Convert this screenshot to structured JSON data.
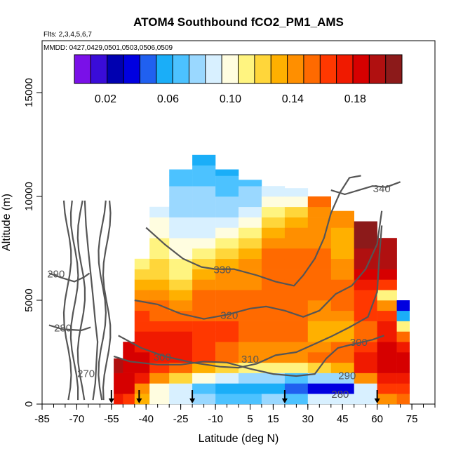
{
  "chart_data": {
    "type": "heatmap",
    "title": "ATOM4 Southbound fCO2_PM1_AMS",
    "subtitle_flts": "Flts: 2,3,4,5,6,7",
    "subtitle_dates": "MMDD: 0427,0429,0501,0503,0506,0509",
    "xlabel": "Latitude (deg N)",
    "ylabel": "Altitude (m)",
    "xlim": [
      -85,
      85
    ],
    "ylim": [
      0,
      17500
    ],
    "xticks": [
      -85,
      -70,
      -55,
      -40,
      -25,
      -10,
      5,
      15,
      30,
      45,
      60,
      75
    ],
    "yticks": [
      0,
      5000,
      10000,
      15000
    ],
    "colorbar": {
      "range": [
        0.0,
        0.21
      ],
      "ticks": [
        "0.02",
        "0.06",
        "0.10",
        "0.14",
        "0.18"
      ],
      "tick_values": [
        0.02,
        0.06,
        0.1,
        0.14,
        0.18
      ],
      "colors": [
        "#7a10e8",
        "#3a0cd8",
        "#0000b0",
        "#0000e0",
        "#2060f0",
        "#1aaef8",
        "#4cc2ff",
        "#9ad8ff",
        "#d8f0ff",
        "#fffde0",
        "#fff480",
        "#ffd63a",
        "#ffb000",
        "#ff8f00",
        "#ff6a00",
        "#ff3800",
        "#f01a00",
        "#d60000",
        "#b01010",
        "#8c1a1a"
      ]
    },
    "profiles": [
      {
        "lat": 72,
        "ztop": 5000,
        "vals": [
          [
            0,
            0.14
          ],
          [
            600,
            0.16
          ],
          [
            1500,
            0.18
          ],
          [
            2400,
            0.19
          ],
          [
            3300,
            0.15
          ],
          [
            3900,
            0.09
          ],
          [
            4500,
            0.04
          ],
          [
            5000,
            0.03
          ]
        ]
      },
      {
        "lat": 65,
        "ztop": 8000,
        "vals": [
          [
            0,
            0.14
          ],
          [
            800,
            0.16
          ],
          [
            1800,
            0.19
          ],
          [
            2800,
            0.18
          ],
          [
            4200,
            0.17
          ],
          [
            5200,
            0.11
          ],
          [
            6000,
            0.18
          ],
          [
            7000,
            0.2
          ],
          [
            8000,
            0.19
          ]
        ]
      },
      {
        "lat": 55,
        "ztop": 8800,
        "vals": [
          [
            0,
            0.12
          ],
          [
            500,
            0.05
          ],
          [
            1000,
            0.12
          ],
          [
            1800,
            0.18
          ],
          [
            2600,
            0.16
          ],
          [
            3400,
            0.15
          ],
          [
            4500,
            0.16
          ],
          [
            5500,
            0.17
          ],
          [
            6500,
            0.19
          ],
          [
            7500,
            0.2
          ],
          [
            8800,
            0.2
          ]
        ]
      },
      {
        "lat": 45,
        "ztop": 9300,
        "vals": [
          [
            0,
            0.13
          ],
          [
            400,
            0.06
          ],
          [
            900,
            0.02
          ],
          [
            1500,
            0.12
          ],
          [
            2400,
            0.16
          ],
          [
            3400,
            0.13
          ],
          [
            4500,
            0.15
          ],
          [
            6000,
            0.15
          ],
          [
            7500,
            0.13
          ],
          [
            9300,
            0.14
          ]
        ]
      },
      {
        "lat": 35,
        "ztop": 10000,
        "vals": [
          [
            0,
            0.12
          ],
          [
            500,
            0.05
          ],
          [
            900,
            0.03
          ],
          [
            1500,
            0.11
          ],
          [
            2300,
            0.15
          ],
          [
            3500,
            0.13
          ],
          [
            5000,
            0.15
          ],
          [
            7000,
            0.15
          ],
          [
            8500,
            0.14
          ],
          [
            10000,
            0.15
          ]
        ]
      },
      {
        "lat": 25,
        "ztop": 10400,
        "vals": [
          [
            0,
            0.09
          ],
          [
            500,
            0.05
          ],
          [
            900,
            0.04
          ],
          [
            1500,
            0.09
          ],
          [
            2300,
            0.14
          ],
          [
            3500,
            0.15
          ],
          [
            5000,
            0.15
          ],
          [
            7000,
            0.15
          ],
          [
            8500,
            0.14
          ],
          [
            9500,
            0.11
          ],
          [
            10400,
            0.09
          ]
        ]
      },
      {
        "lat": 15,
        "ztop": 10500,
        "vals": [
          [
            0,
            0.09
          ],
          [
            500,
            0.06
          ],
          [
            900,
            0.05
          ],
          [
            1500,
            0.1
          ],
          [
            2300,
            0.14
          ],
          [
            3500,
            0.15
          ],
          [
            5000,
            0.15
          ],
          [
            7000,
            0.15
          ],
          [
            8000,
            0.14
          ],
          [
            9000,
            0.11
          ],
          [
            10500,
            0.08
          ]
        ]
      },
      {
        "lat": 5,
        "ztop": 10800,
        "vals": [
          [
            0,
            0.08
          ],
          [
            500,
            0.06
          ],
          [
            900,
            0.05
          ],
          [
            1500,
            0.1
          ],
          [
            2300,
            0.14
          ],
          [
            3500,
            0.15
          ],
          [
            5000,
            0.15
          ],
          [
            7000,
            0.14
          ],
          [
            8000,
            0.12
          ],
          [
            9000,
            0.09
          ],
          [
            10800,
            0.07
          ]
        ]
      },
      {
        "lat": -5,
        "ztop": 11300,
        "vals": [
          [
            0,
            0.08
          ],
          [
            500,
            0.06
          ],
          [
            900,
            0.06
          ],
          [
            1500,
            0.11
          ],
          [
            2300,
            0.15
          ],
          [
            3500,
            0.16
          ],
          [
            5000,
            0.15
          ],
          [
            6500,
            0.14
          ],
          [
            7500,
            0.12
          ],
          [
            8500,
            0.09
          ],
          [
            9500,
            0.08
          ],
          [
            11300,
            0.06
          ]
        ]
      },
      {
        "lat": -15,
        "ztop": 12000,
        "vals": [
          [
            0,
            0.08
          ],
          [
            500,
            0.07
          ],
          [
            900,
            0.07
          ],
          [
            1500,
            0.12
          ],
          [
            2300,
            0.16
          ],
          [
            3500,
            0.16
          ],
          [
            5000,
            0.15
          ],
          [
            6000,
            0.14
          ],
          [
            7000,
            0.11
          ],
          [
            8000,
            0.09
          ],
          [
            9500,
            0.08
          ],
          [
            11000,
            0.07
          ],
          [
            12000,
            0.06
          ]
        ]
      },
      {
        "lat": -25,
        "ztop": 11300,
        "vals": [
          [
            0,
            0.09
          ],
          [
            500,
            0.08
          ],
          [
            900,
            0.09
          ],
          [
            1500,
            0.14
          ],
          [
            2300,
            0.17
          ],
          [
            3500,
            0.17
          ],
          [
            4500,
            0.15
          ],
          [
            5500,
            0.12
          ],
          [
            6500,
            0.11
          ],
          [
            7500,
            0.1
          ],
          [
            8500,
            0.09
          ],
          [
            9500,
            0.08
          ],
          [
            11300,
            0.07
          ]
        ]
      },
      {
        "lat": -35,
        "ztop": 9500,
        "vals": [
          [
            0,
            0.1
          ],
          [
            500,
            0.09
          ],
          [
            900,
            0.11
          ],
          [
            1500,
            0.16
          ],
          [
            2300,
            0.17
          ],
          [
            3500,
            0.17
          ],
          [
            4500,
            0.15
          ],
          [
            5500,
            0.14
          ],
          [
            6500,
            0.12
          ],
          [
            7500,
            0.11
          ],
          [
            8500,
            0.1
          ],
          [
            9500,
            0.09
          ]
        ]
      },
      {
        "lat": -42,
        "ztop": 7000,
        "vals": [
          [
            0,
            0.12
          ],
          [
            600,
            0.14
          ],
          [
            1500,
            0.18
          ],
          [
            2500,
            0.18
          ],
          [
            3500,
            0.17
          ],
          [
            4500,
            0.16
          ],
          [
            5500,
            0.14
          ],
          [
            6200,
            0.12
          ],
          [
            7000,
            0.1
          ]
        ]
      },
      {
        "lat": -48,
        "ztop": 3000,
        "vals": [
          [
            0,
            0.16
          ],
          [
            800,
            0.18
          ],
          [
            1600,
            0.19
          ],
          [
            2400,
            0.18
          ],
          [
            3000,
            0.18
          ]
        ]
      },
      {
        "lat": -52,
        "ztop": 2200,
        "vals": [
          [
            0,
            0.17
          ],
          [
            800,
            0.18
          ],
          [
            1500,
            0.19
          ],
          [
            2200,
            0.19
          ]
        ]
      }
    ],
    "contours": [
      {
        "label": "270",
        "points": [
          [
            -63,
            200
          ],
          [
            -62,
            1000
          ],
          [
            -61.5,
            2000
          ],
          [
            -61,
            3000
          ],
          [
            -62,
            4000
          ],
          [
            -63,
            5200
          ],
          [
            -64,
            6300
          ],
          [
            -65,
            7400
          ],
          [
            -66,
            8600
          ],
          [
            -66.5,
            9800
          ]
        ]
      },
      {
        "label": "280",
        "points": [
          [
            -82,
            3800
          ],
          [
            -76,
            3600
          ],
          [
            -68,
            3550
          ],
          [
            -64,
            3700
          ]
        ]
      },
      {
        "label": "290",
        "points": [
          [
            -82,
            6300
          ],
          [
            -77,
            6100
          ],
          [
            -71,
            5900
          ],
          [
            -67,
            6100
          ],
          [
            -64.5,
            6300
          ]
        ]
      },
      {
        "label": "300",
        "points": [
          [
            -54,
            2300
          ],
          [
            -47,
            2050
          ],
          [
            -35,
            1900
          ],
          [
            -25,
            1900
          ],
          [
            -15,
            2050
          ],
          [
            -5,
            2000
          ],
          [
            5,
            1700
          ],
          [
            15,
            1450
          ],
          [
            25,
            1350
          ],
          [
            33,
            1450
          ],
          [
            38,
            2200
          ],
          [
            43,
            2700
          ],
          [
            50,
            2900
          ],
          [
            58,
            3100
          ],
          [
            63,
            3300
          ]
        ]
      },
      {
        "label": "310",
        "points": [
          [
            -52,
            3300
          ],
          [
            -42,
            2700
          ],
          [
            -32,
            2300
          ],
          [
            -20,
            2000
          ],
          [
            -8,
            1800
          ],
          [
            0,
            1750
          ],
          [
            8,
            1950
          ],
          [
            16,
            2350
          ],
          [
            25,
            2500
          ],
          [
            33,
            2900
          ],
          [
            40,
            3250
          ],
          [
            48,
            3700
          ],
          [
            56,
            4200
          ],
          [
            60,
            5400
          ],
          [
            61,
            7200
          ],
          [
            62,
            8600
          ]
        ]
      },
      {
        "label": "320",
        "points": [
          [
            -45,
            5000
          ],
          [
            -35,
            4800
          ],
          [
            -25,
            4350
          ],
          [
            -15,
            4100
          ],
          [
            -5,
            4300
          ],
          [
            5,
            4600
          ],
          [
            12,
            4700
          ],
          [
            20,
            4500
          ],
          [
            28,
            4200
          ],
          [
            35,
            4500
          ],
          [
            42,
            5300
          ],
          [
            49,
            5700
          ],
          [
            55,
            6500
          ],
          [
            60,
            7700
          ],
          [
            62,
            9300
          ]
        ]
      },
      {
        "label": "330",
        "points": [
          [
            -40,
            8500
          ],
          [
            -32,
            7700
          ],
          [
            -24,
            7000
          ],
          [
            -16,
            6600
          ],
          [
            -10,
            6500
          ],
          [
            -2,
            6500
          ],
          [
            8,
            6200
          ],
          [
            16,
            5900
          ],
          [
            24,
            5700
          ],
          [
            28,
            6200
          ],
          [
            33,
            7000
          ],
          [
            37,
            8000
          ],
          [
            40,
            9200
          ],
          [
            44,
            10200
          ],
          [
            48,
            10900
          ],
          [
            53,
            11000
          ]
        ]
      },
      {
        "label": "340",
        "points": [
          [
            40,
            10300
          ],
          [
            46,
            10100
          ],
          [
            52,
            10300
          ],
          [
            58,
            10500
          ],
          [
            64,
            10450
          ],
          [
            70,
            10700
          ]
        ]
      }
    ],
    "arrows_lat": [
      -55,
      -43,
      -20,
      20,
      60
    ],
    "contour_labels": [
      {
        "text": "270",
        "lat": -66,
        "alt": 1300
      },
      {
        "text": "280",
        "lat": -76,
        "alt": 3500
      },
      {
        "text": "290",
        "lat": -79,
        "alt": 6100
      },
      {
        "text": "300",
        "lat": -33,
        "alt": 2100
      },
      {
        "text": "310",
        "lat": 5,
        "alt": 2000
      },
      {
        "text": "320",
        "lat": -4,
        "alt": 4100
      },
      {
        "text": "330",
        "lat": -7,
        "alt": 6300
      },
      {
        "text": "340",
        "lat": 62,
        "alt": 10200
      },
      {
        "text": "300",
        "lat": 52,
        "alt": 2800
      },
      {
        "text": "290",
        "lat": 47,
        "alt": 1200
      },
      {
        "text": "280",
        "lat": 44,
        "alt": 300
      }
    ]
  }
}
